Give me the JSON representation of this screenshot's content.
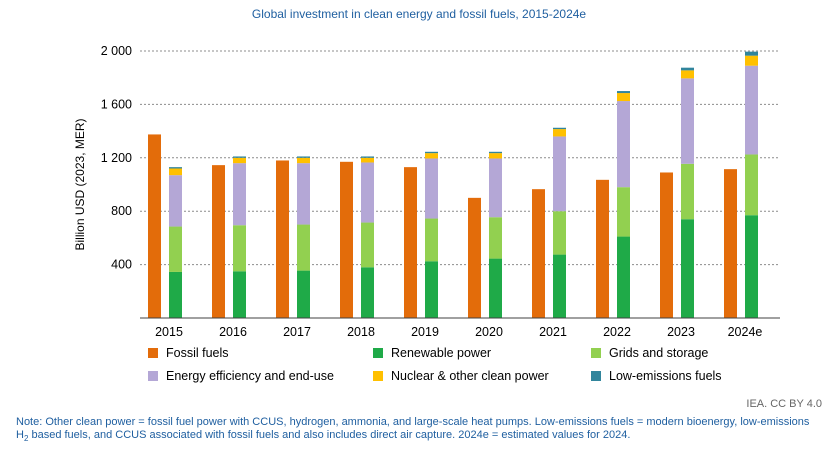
{
  "chart_data": {
    "type": "bar",
    "title": "Global investment in clean energy and fossil fuels, 2015-2024e",
    "ylabel": "Billion USD (2023, MER)",
    "xlabel": "",
    "ylim": [
      0,
      2000
    ],
    "yticks": [
      "400",
      "800",
      "1 200",
      "1 600",
      "2 000"
    ],
    "ytick_values": [
      400,
      800,
      1200,
      1600,
      2000
    ],
    "grid": "horizontal dashed",
    "legend_position": "bottom",
    "categories": [
      "2015",
      "2016",
      "2017",
      "2018",
      "2019",
      "2020",
      "2021",
      "2022",
      "2023",
      "2024e"
    ],
    "fossil": {
      "name": "Fossil fuels",
      "color": "#e36c0a",
      "values": [
        1375,
        1145,
        1180,
        1170,
        1130,
        900,
        965,
        1035,
        1090,
        1115
      ]
    },
    "clean_series": [
      {
        "name": "Renewable power",
        "color": "#1faa48",
        "values": [
          345,
          350,
          355,
          380,
          425,
          445,
          475,
          610,
          740,
          770
        ]
      },
      {
        "name": "Grids and storage",
        "color": "#92d050",
        "values": [
          340,
          345,
          345,
          335,
          320,
          310,
          325,
          370,
          415,
          455
        ]
      },
      {
        "name": "Energy efficiency and end-use",
        "color": "#b4a7d6",
        "values": [
          385,
          465,
          460,
          450,
          450,
          440,
          560,
          645,
          640,
          665
        ]
      },
      {
        "name": "Nuclear & other clean power",
        "color": "#ffc000",
        "values": [
          50,
          40,
          40,
          35,
          40,
          40,
          55,
          60,
          60,
          75
        ]
      },
      {
        "name": "Low-emissions fuels",
        "color": "#31859c",
        "values": [
          10,
          10,
          10,
          10,
          10,
          10,
          10,
          15,
          20,
          30
        ]
      }
    ]
  },
  "source": "IEA. CC BY 4.0",
  "note": {
    "line1": "Note: Other clean power = fossil fuel power with CCUS, hydrogen, ammonia, and large-scale heat pumps. Low-emissions fuels = modern bioenergy, low-emissions",
    "h": "H",
    "sub": "2",
    "line2_rest": " based fuels, and CCUS associated with fossil fuels and also includes direct air capture. 2024e = estimated values for 2024."
  },
  "legend": [
    {
      "label": "Fossil fuels",
      "color": "#e36c0a"
    },
    {
      "label": "Renewable power",
      "color": "#1faa48"
    },
    {
      "label": "Grids and storage",
      "color": "#92d050"
    },
    {
      "label": "Energy efficiency and end-use",
      "color": "#b4a7d6"
    },
    {
      "label": "Nuclear & other clean power",
      "color": "#ffc000"
    },
    {
      "label": "Low-emissions fuels",
      "color": "#31859c"
    }
  ]
}
